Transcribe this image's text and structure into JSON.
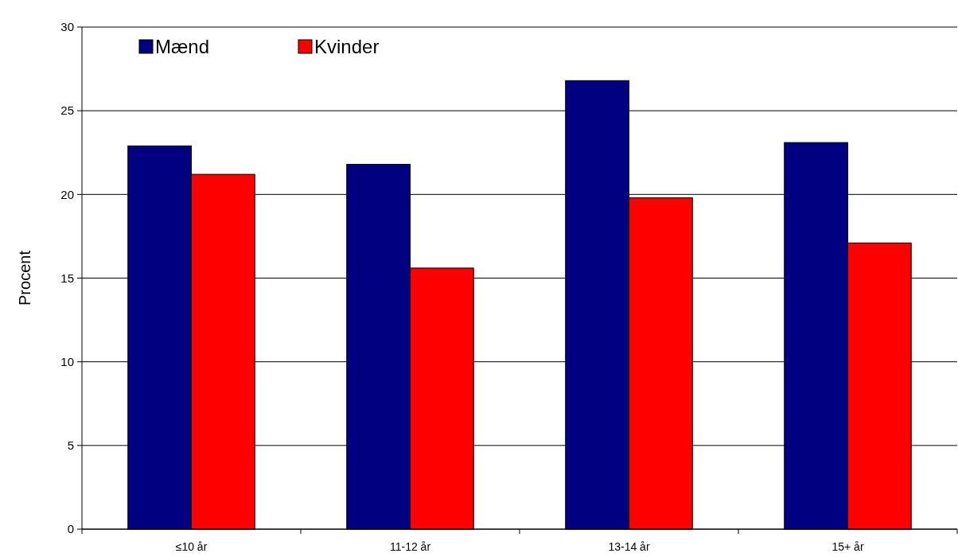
{
  "chart_data": {
    "type": "bar",
    "ylabel": "Procent",
    "categories": [
      "≤10 år",
      "11-12 år",
      "13-14 år",
      "15+ år"
    ],
    "series": [
      {
        "name": "Mænd",
        "color": "#000080",
        "values": [
          22.9,
          21.8,
          26.8,
          23.1
        ]
      },
      {
        "name": "Kvinder",
        "color": "#ff0000",
        "values": [
          21.2,
          15.6,
          19.8,
          17.1
        ]
      }
    ],
    "ylim": [
      0,
      30
    ],
    "yticks": [
      0,
      5,
      10,
      15,
      20,
      25,
      30
    ],
    "grid": "y",
    "legend": "top left"
  }
}
